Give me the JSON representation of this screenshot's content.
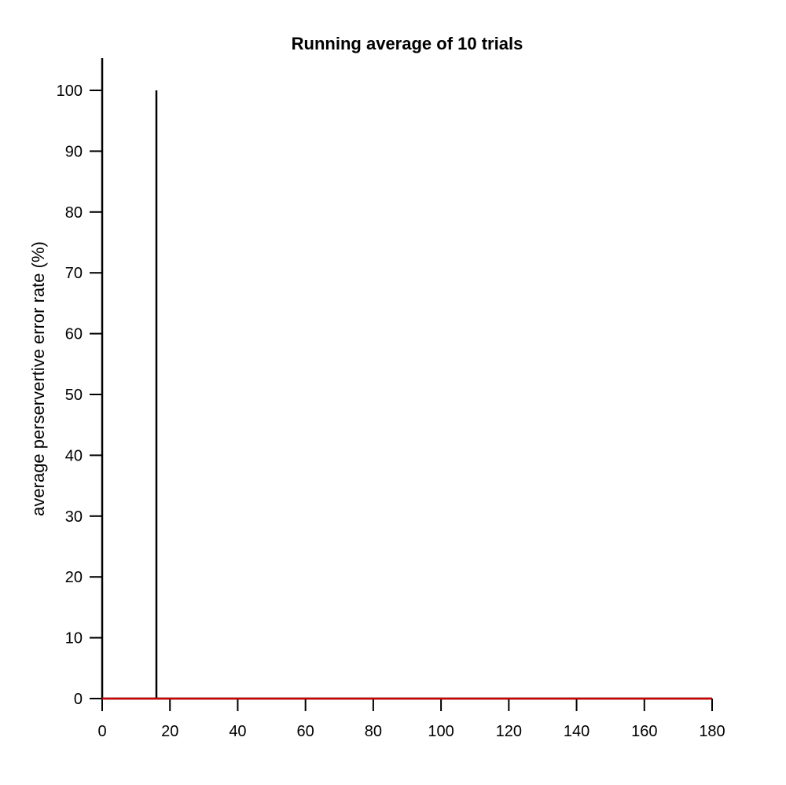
{
  "chart_data": {
    "type": "line",
    "title": "Running average of 10 trials",
    "xlabel": "",
    "ylabel": "average perservertive error rate (%)",
    "xlim": [
      0,
      180
    ],
    "ylim": [
      0,
      100
    ],
    "xticks": [
      0,
      20,
      40,
      60,
      80,
      100,
      120,
      140,
      160,
      180
    ],
    "yticks": [
      0,
      10,
      20,
      30,
      40,
      50,
      60,
      70,
      80,
      90,
      100
    ],
    "grid": false,
    "series": [
      {
        "color": "#cc0000",
        "x": [
          0,
          180
        ],
        "y": [
          0,
          0
        ]
      }
    ],
    "vlines": [
      {
        "x": 16,
        "y": [
          0,
          100
        ],
        "color": "#000000"
      }
    ]
  }
}
